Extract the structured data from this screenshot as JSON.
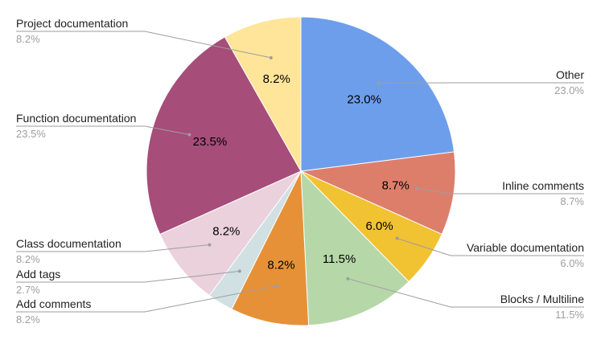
{
  "chart_data": {
    "type": "pie",
    "title": "",
    "legend": "labels outside with leader lines",
    "slices": [
      {
        "label": "Other",
        "value": 23.0,
        "display": "23.0%",
        "color": "#6d9eeb"
      },
      {
        "label": "Inline comments",
        "value": 8.7,
        "display": "8.7%",
        "color": "#dd7e6b"
      },
      {
        "label": "Variable documentation",
        "value": 6.0,
        "display": "6.0%",
        "color": "#f1c232"
      },
      {
        "label": "Blocks / Multiline",
        "value": 11.5,
        "display": "11.5%",
        "color": "#b6d7a8"
      },
      {
        "label": "Add comments",
        "value": 8.2,
        "display": "8.2%",
        "color": "#e69138"
      },
      {
        "label": "Add tags",
        "value": 2.7,
        "display": "2.7%",
        "color": "#d0e0e3"
      },
      {
        "label": "Class documentation",
        "value": 8.2,
        "display": "8.2%",
        "color": "#ead1dc"
      },
      {
        "label": "Function documentation",
        "value": 23.5,
        "display": "23.5%",
        "color": "#a64d79"
      },
      {
        "label": "Project documentation",
        "value": 8.2,
        "display": "8.2%",
        "color": "#ffe599"
      }
    ]
  }
}
